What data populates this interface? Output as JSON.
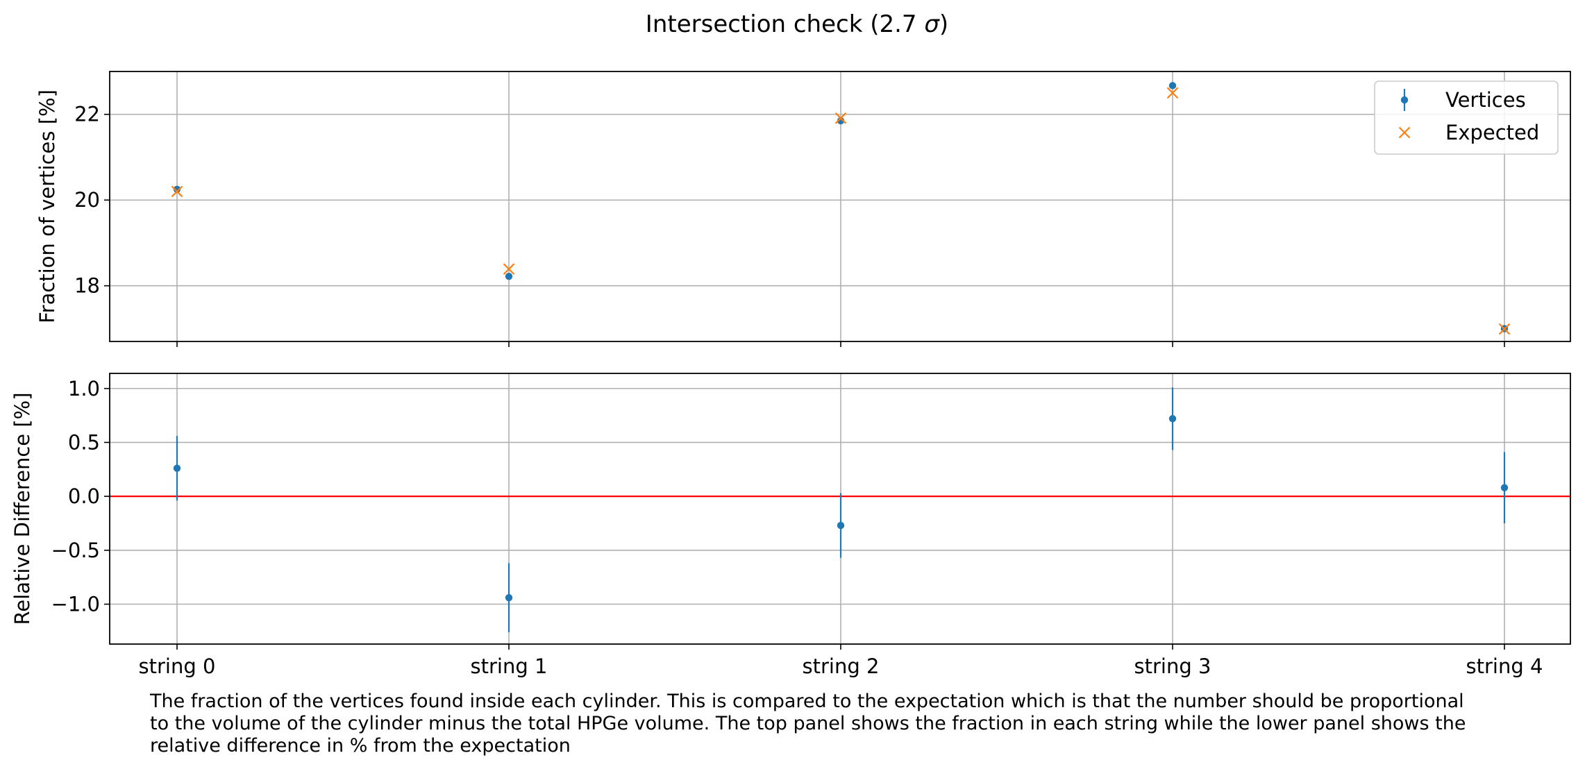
{
  "figure": {
    "title_prefix": "Intersection check (2.7 ",
    "title_symbol": "σ",
    "title_suffix": ")",
    "caption_lines": [
      "The fraction of the vertices found inside each cylinder. This is compared to the expectation which is that the number should be proportional",
      "to the volume of the cylinder minus the total HPGe volume. The top panel shows the fraction in each string while the lower panel shows the",
      "relative difference in % from the expectation"
    ]
  },
  "colors": {
    "vertices": "#1f77b4",
    "expected": "#ff7f0e",
    "reference_line": "#ff0000",
    "grid": "#b0b0b0"
  },
  "chart_data": [
    {
      "type": "scatter",
      "panel": "top",
      "ylabel": "Fraction of vertices [%]",
      "categories": [
        "string 0",
        "string 1",
        "string 2",
        "string 3",
        "string 4"
      ],
      "ylim": [
        16.7,
        23.0
      ],
      "yticks": [
        18,
        20,
        22
      ],
      "grid": true,
      "legend": "top-right",
      "series": [
        {
          "name": "Vertices",
          "marker": "point-errorbar",
          "values": [
            20.25,
            18.22,
            21.85,
            22.67,
            17.0
          ],
          "errors": [
            0.06,
            0.06,
            0.06,
            0.07,
            0.06
          ]
        },
        {
          "name": "Expected",
          "marker": "x",
          "values": [
            20.2,
            18.39,
            21.91,
            22.5,
            16.99
          ]
        }
      ]
    },
    {
      "type": "scatter",
      "panel": "bottom",
      "ylabel": "Relative Difference [%]",
      "categories": [
        "string 0",
        "string 1",
        "string 2",
        "string 3",
        "string 4"
      ],
      "ylim": [
        -1.37,
        1.14
      ],
      "yticks": [
        1.0,
        0.5,
        0.0,
        -0.5,
        -1.0
      ],
      "ytick_labels": [
        "1.0",
        "0.5",
        "0.0",
        "−0.5",
        "−1.0"
      ],
      "grid": true,
      "reference_line": 0.0,
      "series": [
        {
          "name": "Vertices",
          "marker": "point-errorbar",
          "values": [
            0.26,
            -0.94,
            -0.27,
            0.72,
            0.08
          ],
          "errors": [
            0.3,
            0.32,
            0.3,
            0.29,
            0.33
          ]
        }
      ]
    }
  ]
}
